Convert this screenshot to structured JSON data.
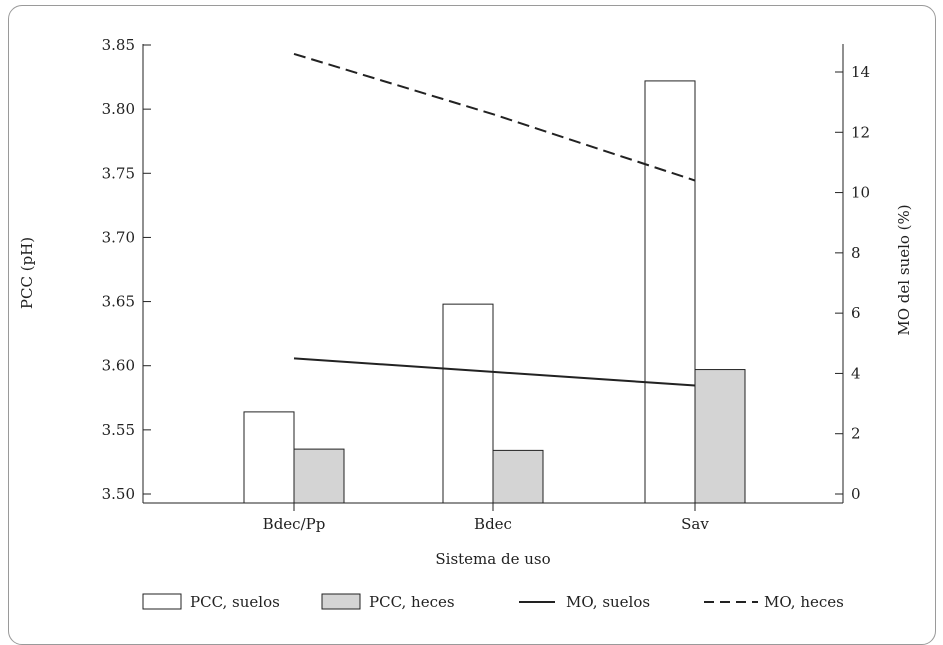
{
  "chart_data": {
    "type": "bar",
    "categories": [
      "Bdec/Pp",
      "Bdec",
      "Sav"
    ],
    "xlabel": "Sistema de uso",
    "ylabel_left": "PCC (pH)",
    "ylabel_right": "MO del suelo (%)",
    "ylim_left": [
      3.5,
      3.85
    ],
    "yticks_left": [
      "3.50",
      "3.55",
      "3.60",
      "3.65",
      "3.70",
      "3.75",
      "3.80",
      "3.85"
    ],
    "ylim_right": [
      0,
      15
    ],
    "yticks_right": [
      "0",
      "2",
      "4",
      "6",
      "8",
      "10",
      "12",
      "14"
    ],
    "bar_series": [
      {
        "name": "PCC, suelos",
        "values": [
          3.564,
          3.648,
          3.822
        ],
        "color": "#ffffff"
      },
      {
        "name": "PCC, heces",
        "values": [
          3.535,
          3.534,
          3.597
        ],
        "color": "#d4d4d4"
      }
    ],
    "line_series": [
      {
        "name": "MO, suelos",
        "values": [
          4.5,
          4.05,
          3.6
        ],
        "style": "solid",
        "axis": "right"
      },
      {
        "name": "MO, heces",
        "values": [
          14.6,
          12.6,
          10.4
        ],
        "style": "dashed",
        "axis": "right"
      }
    ],
    "legend_position": "bottom"
  }
}
